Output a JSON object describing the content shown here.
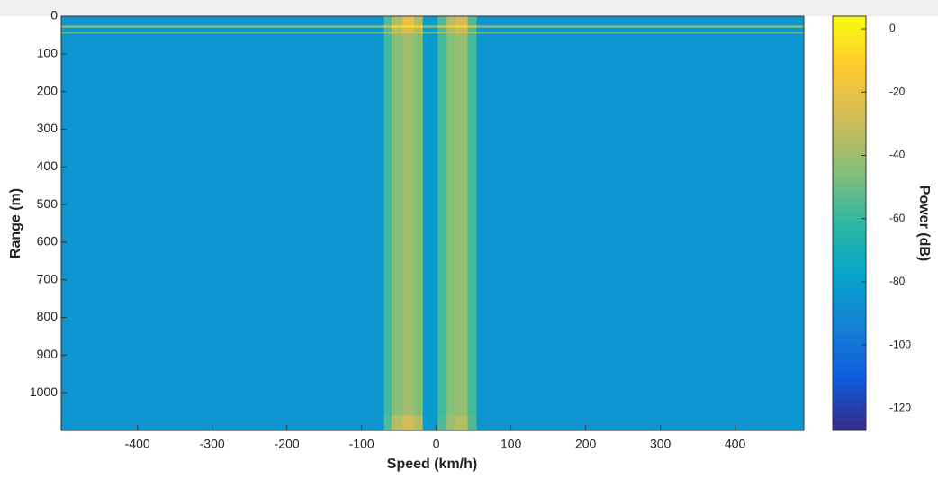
{
  "chart_data": {
    "type": "heatmap",
    "x_label": "Speed (km/h)",
    "y_label": "Range (m)",
    "colorbar_label": "Power (dB)",
    "x_bins": [
      -502,
      -70,
      -60,
      -45,
      -30,
      -18,
      2,
      14,
      25,
      42,
      54,
      492
    ],
    "y_bins": [
      0,
      25,
      30,
      42,
      46,
      1060,
      1100
    ],
    "z": [
      [
        -85,
        -55,
        -35,
        -20,
        -35,
        -80,
        -55,
        -35,
        -28,
        -55,
        -85
      ],
      [
        -40,
        -20,
        -8,
        -5,
        -8,
        -40,
        -20,
        -10,
        -8,
        -20,
        -40
      ],
      [
        -85,
        -55,
        -35,
        -25,
        -35,
        -80,
        -55,
        -38,
        -30,
        -55,
        -85
      ],
      [
        -50,
        -35,
        -25,
        -22,
        -25,
        -50,
        -35,
        -28,
        -25,
        -35,
        -50
      ],
      [
        -85,
        -58,
        -45,
        -40,
        -45,
        -82,
        -58,
        -45,
        -42,
        -58,
        -85
      ],
      [
        -85,
        -55,
        -35,
        -28,
        -35,
        -82,
        -55,
        -40,
        -35,
        -55,
        -85
      ]
    ],
    "xlim": [
      -502,
      492
    ],
    "ylim": [
      1100,
      0
    ],
    "xticks": [
      -400,
      -300,
      -200,
      -100,
      0,
      100,
      200,
      300,
      400
    ],
    "yticks": [
      0,
      100,
      200,
      300,
      400,
      500,
      600,
      700,
      800,
      900,
      1000
    ],
    "clim": [
      -127,
      4
    ],
    "cticks": [
      0,
      -20,
      -40,
      -60,
      -80,
      -100,
      -120
    ],
    "colormap": [
      "#352a87",
      "#0f5cdd",
      "#1481d6",
      "#06a4ca",
      "#2eb7a4",
      "#87bf77",
      "#d1bb59",
      "#fec832",
      "#f9fb0e"
    ]
  }
}
